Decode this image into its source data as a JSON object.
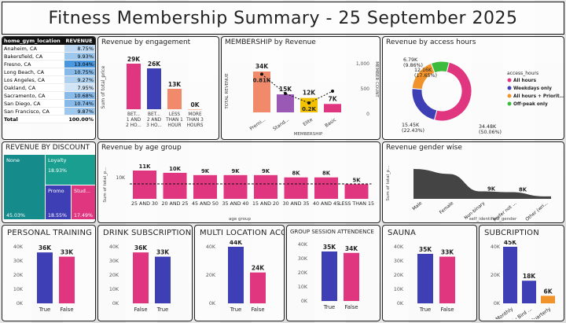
{
  "title": "Fitness Membership Summary - 25 September 2025",
  "gym_table": {
    "headers": [
      "home_gym_location",
      "REVENUE"
    ],
    "rows": [
      {
        "loc": "Anaheim, CA",
        "val": "8.75%",
        "pct": 8.75
      },
      {
        "loc": "Bakersfield, CA",
        "val": "9.93%",
        "pct": 9.93
      },
      {
        "loc": "Fresno, CA",
        "val": "13.04%",
        "pct": 13.04
      },
      {
        "loc": "Long Beach, CA",
        "val": "10.75%",
        "pct": 10.75
      },
      {
        "loc": "Los Angeles, CA",
        "val": "9.27%",
        "pct": 9.27
      },
      {
        "loc": "Oakland, CA",
        "val": "7.95%",
        "pct": 7.95
      },
      {
        "loc": "Sacramento, CA",
        "val": "10.68%",
        "pct": 10.68
      },
      {
        "loc": "San Diego, CA",
        "val": "10.74%",
        "pct": 10.74
      },
      {
        "loc": "San Francisco, CA",
        "val": "9.87%",
        "pct": 9.87
      }
    ],
    "total_label": "Total",
    "total_value": "100.00%"
  },
  "panels": {
    "engagement": "Revenue by engagement",
    "membership": "MEMBERSHIP by Revenue",
    "access": "Revenue by access hours",
    "discount": "REVENUE BY DISCOUNT",
    "age": "Revenue by age group",
    "gender": "Revenue gender wise",
    "personal": "PERSONAL TRAINING",
    "drink": "DRINK SUBSCRIPTION",
    "multi": "MULTI LOCATION ACCESS",
    "group": "GROUP SESSION ATTENDENCE",
    "sauna": "SAUNA",
    "subscription": "SUBCRIPTION"
  },
  "colors": {
    "pink": "#e0357f",
    "blue": "#3f3fb5",
    "salmon": "#f08a6a",
    "purple": "#9b59b6",
    "yellow": "#f2c200",
    "teal": "#168b8b",
    "green": "#3dbb3d",
    "orange": "#f0932a",
    "darkgray": "#444444"
  },
  "chart_data": [
    {
      "id": "engagement",
      "type": "bar",
      "ylabel": "Sum of total_price",
      "categories": [
        "BET... 1 AND 2 HO...",
        "BET... 2 AND 3 HO...",
        "LESS THAN 1 HOUR",
        "MORE THAN 3 HOURS"
      ],
      "values": [
        29000,
        26000,
        13000,
        0
      ],
      "labels": [
        "29K",
        "26K",
        "13K",
        "0K"
      ],
      "ylim": [
        0,
        30000
      ]
    },
    {
      "id": "membership",
      "type": "bar",
      "xlabel": "MEMBERSHIP",
      "ylabel": "TOTAL REVENUE",
      "y2label": "MEMBER COUNT",
      "categories": [
        "Premi...",
        "Stand...",
        "Elite",
        "Basic"
      ],
      "values": [
        34000,
        15000,
        12000,
        7000
      ],
      "labels": [
        "34K",
        "15K",
        "12K",
        "7K"
      ],
      "line_values": [
        0.81,
        0.4,
        0.2,
        0.45
      ],
      "line_labels": [
        "0.81K",
        "",
        "0.2K",
        ""
      ],
      "yticks": [
        "1,000",
        "500",
        "0"
      ]
    },
    {
      "id": "access",
      "type": "pie",
      "legend_title": "access_hours",
      "slices": [
        {
          "name": "All hours",
          "value": 50.06,
          "label": "34.48K (50.06%)"
        },
        {
          "name": "Weekdays only",
          "value": 22.43,
          "label": "15.45K (22.43%)"
        },
        {
          "name": "All hours + Priorit...",
          "value": 17.65,
          "label": "12.16K (17.65%)"
        },
        {
          "name": "Off-peak only",
          "value": 9.86,
          "label": "6.79K (9.86%)"
        }
      ]
    },
    {
      "id": "discount",
      "type": "heatmap",
      "slices": [
        {
          "name": "None",
          "pct": "45.03%"
        },
        {
          "name": "Loyalty",
          "pct": "18.93%"
        },
        {
          "name": "Promo",
          "pct": "18.55%"
        },
        {
          "name": "Stud...",
          "pct": "17.49%"
        }
      ]
    },
    {
      "id": "age",
      "type": "bar",
      "xlabel": "age group",
      "ylabel": "Sum of total_p...",
      "ytick": "10K",
      "categories": [
        "25 AND 30",
        "20 AND 25",
        "45 AND 50",
        "35 AND 40",
        "15 AND 20",
        "30 AND 35",
        "40 AND 45",
        "LESS THAN 15"
      ],
      "values": [
        11000,
        10000,
        9000,
        9000,
        9000,
        8000,
        8000,
        5000
      ],
      "labels": [
        "11K",
        "10K",
        "9K",
        "9K",
        "9K",
        "8K",
        "8K",
        "5K"
      ]
    },
    {
      "id": "gender",
      "type": "area",
      "xlabel": "self_identified_gender",
      "ylabel": "Sum of total_p...",
      "categories": [
        "Male",
        "Female",
        "Non-binary",
        "Prefer not ...",
        "Other (wri..."
      ],
      "values": [
        36000,
        30000,
        9000,
        8000,
        3000
      ],
      "labels": [
        "",
        "",
        "9K",
        "8K",
        ""
      ]
    },
    {
      "id": "personal",
      "type": "bar",
      "yticks": [
        "40K",
        "30K",
        "20K",
        "10K",
        "0K"
      ],
      "categories": [
        "True",
        "False"
      ],
      "values": [
        36000,
        33000
      ],
      "labels": [
        "36K",
        "33K"
      ]
    },
    {
      "id": "drink",
      "type": "bar",
      "yticks": [
        "40K",
        "30K",
        "20K",
        "10K",
        "0K"
      ],
      "categories": [
        "False",
        "True"
      ],
      "values": [
        36000,
        33000
      ],
      "labels": [
        "36K",
        "33K"
      ]
    },
    {
      "id": "multi",
      "type": "bar",
      "yticks": [
        "40K",
        "20K",
        "0K"
      ],
      "categories": [
        "True",
        "False"
      ],
      "values": [
        44000,
        24000
      ],
      "labels": [
        "44K",
        "24K"
      ]
    },
    {
      "id": "group",
      "type": "bar",
      "yticks": [
        "40K",
        "30K",
        "20K",
        "10K",
        "0K"
      ],
      "categories": [
        "True",
        "False"
      ],
      "values": [
        35000,
        34000
      ],
      "labels": [
        "35K",
        "34K"
      ]
    },
    {
      "id": "sauna",
      "type": "bar",
      "yticks": [
        "40K",
        "30K",
        "20K",
        "10K",
        "0K"
      ],
      "categories": [
        "True",
        "False"
      ],
      "values": [
        35000,
        33000
      ],
      "labels": [
        "35K",
        "33K"
      ]
    },
    {
      "id": "subscription",
      "type": "bar",
      "yticks": [
        "40K",
        "20K",
        "0K"
      ],
      "categories": [
        "Monthly",
        "Early Bird ...",
        "Quarterly"
      ],
      "values": [
        45000,
        18000,
        6000
      ],
      "labels": [
        "45K",
        "18K",
        "6K"
      ]
    }
  ]
}
